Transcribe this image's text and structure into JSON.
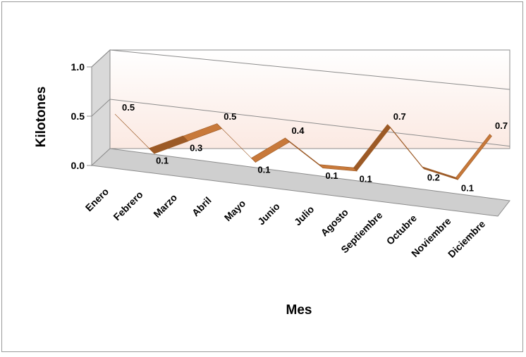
{
  "chart_data": {
    "type": "line",
    "style": "3d-ribbon",
    "title": "",
    "xlabel": "Mes",
    "ylabel": "Kilotones",
    "ylim": [
      0,
      1.0
    ],
    "yticks": [
      "0.0",
      "0.5",
      "1.0"
    ],
    "grid": true,
    "legend": "none",
    "categories": [
      "Enero",
      "Febrero",
      "Marzo",
      "Abril",
      "Mayo",
      "Junio",
      "Julio",
      "Agosto",
      "Septiembre",
      "Octubre",
      "Noviembre",
      "Diciembre"
    ],
    "series": [
      {
        "values": [
          0.5,
          0.1,
          0.3,
          0.5,
          0.1,
          0.4,
          0.1,
          0.1,
          0.7,
          0.2,
          0.1,
          0.7
        ],
        "labels": [
          "0.5",
          "0.1",
          "0.3",
          "0.5",
          "0.1",
          "0.4",
          "0.1",
          "0.1",
          "0.7",
          "0.2",
          "0.1",
          "0.7"
        ],
        "color": "#c8793a"
      }
    ],
    "colors": {
      "backwall": "#fbe9e2",
      "backwall_edge": "#f6d9cc",
      "sidewall": "#d9d9d9",
      "floor": "#cfcfcf",
      "gridline": "#8c8c8c",
      "line": "#c8793a",
      "line_dark": "#9c5a26"
    }
  }
}
